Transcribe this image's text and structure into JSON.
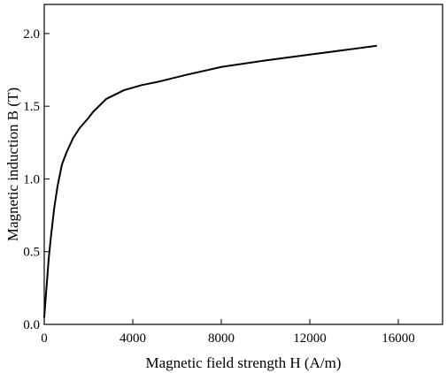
{
  "chart_data": {
    "type": "line",
    "title": "",
    "xlabel": "Magnetic field strength H (A/m)",
    "ylabel": "Magnetic induction B (T)",
    "xlim": [
      0,
      18000
    ],
    "ylim": [
      0,
      2.2
    ],
    "x_ticks": [
      0,
      4000,
      8000,
      12000,
      16000
    ],
    "x_tick_labels": [
      "0",
      "4000",
      "8000",
      "12000",
      "16000"
    ],
    "y_ticks": [
      0,
      0.5,
      1.0,
      1.5,
      2.0
    ],
    "y_tick_labels": [
      "0.0",
      "0.5",
      "1.0",
      "1.5",
      "2.0"
    ],
    "grid": false,
    "legend": "none",
    "series": [
      {
        "color": "#000000",
        "x": [
          0,
          100,
          200,
          300,
          450,
          600,
          800,
          1000,
          1300,
          1600,
          2000,
          2200,
          2800,
          3600,
          4400,
          5200,
          6400,
          8000,
          10000,
          12000,
          14000,
          15000
        ],
        "y": [
          0.05,
          0.25,
          0.45,
          0.6,
          0.8,
          0.95,
          1.1,
          1.18,
          1.28,
          1.35,
          1.42,
          1.46,
          1.55,
          1.61,
          1.645,
          1.67,
          1.715,
          1.77,
          1.815,
          1.855,
          1.895,
          1.915
        ]
      }
    ]
  }
}
